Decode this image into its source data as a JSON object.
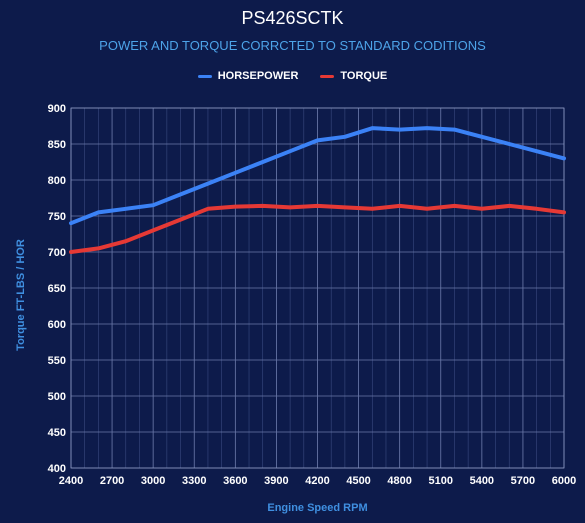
{
  "chart_data": {
    "type": "line",
    "title": "PS426SCTK",
    "subtitle": "POWER AND TORQUE CORRCTED TO STANDARD CODITIONS",
    "xlabel": "Engine Speed RPM",
    "ylabel": "Torque FT-LBS / HOR",
    "x": [
      2400,
      2600,
      2800,
      3000,
      3200,
      3400,
      3600,
      3800,
      4000,
      4200,
      4400,
      4600,
      4800,
      5000,
      5200,
      5400,
      5600,
      5800,
      6000
    ],
    "series": [
      {
        "name": "HORSEPOWER",
        "color": "#3b82f6",
        "values": [
          740,
          755,
          760,
          765,
          780,
          795,
          810,
          825,
          840,
          855,
          860,
          872,
          870,
          872,
          870,
          860,
          850,
          840,
          830
        ]
      },
      {
        "name": "TORQUE",
        "color": "#e53935",
        "values": [
          700,
          705,
          715,
          730,
          745,
          760,
          763,
          764,
          762,
          764,
          762,
          760,
          764,
          760,
          764,
          760,
          764,
          760,
          755
        ]
      }
    ],
    "xlim": [
      2400,
      6000
    ],
    "ylim": [
      400,
      900
    ],
    "xticks": [
      2400,
      2700,
      3000,
      3300,
      3600,
      3900,
      4200,
      4500,
      4800,
      5100,
      5400,
      5700,
      6000
    ],
    "yticks": [
      400,
      450,
      500,
      550,
      600,
      650,
      700,
      750,
      800,
      850,
      900
    ],
    "grid": true,
    "legend_position": "top"
  }
}
